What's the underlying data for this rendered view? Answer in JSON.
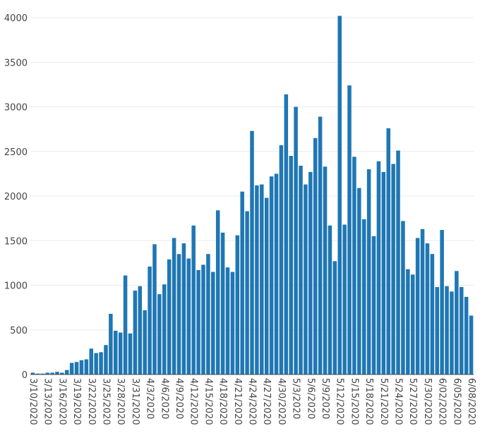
{
  "chart_data": {
    "type": "bar",
    "title": "",
    "xlabel": "",
    "ylabel": "",
    "ylim": [
      0,
      4100
    ],
    "yticks": [
      0,
      500,
      1000,
      1500,
      2000,
      2500,
      3000,
      3500,
      4000
    ],
    "grid": true,
    "bar_color": "#1f77b4",
    "x_tick_labels": [
      "3/10/2020",
      "3/13/2020",
      "3/16/2020",
      "3/19/2020",
      "3/22/2020",
      "3/25/2020",
      "3/28/2020",
      "3/31/2020",
      "4/3/2020",
      "4/6/2020",
      "4/9/2020",
      "4/12/2020",
      "4/15/2020",
      "4/18/2020",
      "4/21/2020",
      "4/24/2020",
      "4/27/2020",
      "4/30/2020",
      "5/3/2020",
      "5/6/2020",
      "5/9/2020",
      "5/12/2020",
      "5/15/2020",
      "5/18/2020",
      "5/21/2020",
      "5/24/2020",
      "5/27/2020",
      "5/30/2020",
      "6/02/2020",
      "6/05/2020",
      "6/08/2020"
    ],
    "categories": [
      "3/10/2020",
      "3/11/2020",
      "3/12/2020",
      "3/13/2020",
      "3/14/2020",
      "3/15/2020",
      "3/16/2020",
      "3/17/2020",
      "3/18/2020",
      "3/19/2020",
      "3/20/2020",
      "3/21/2020",
      "3/22/2020",
      "3/23/2020",
      "3/24/2020",
      "3/25/2020",
      "3/26/2020",
      "3/27/2020",
      "3/28/2020",
      "3/29/2020",
      "3/30/2020",
      "3/31/2020",
      "4/1/2020",
      "4/2/2020",
      "4/3/2020",
      "4/4/2020",
      "4/5/2020",
      "4/6/2020",
      "4/7/2020",
      "4/8/2020",
      "4/9/2020",
      "4/10/2020",
      "4/11/2020",
      "4/12/2020",
      "4/13/2020",
      "4/14/2020",
      "4/15/2020",
      "4/16/2020",
      "4/17/2020",
      "4/18/2020",
      "4/19/2020",
      "4/20/2020",
      "4/21/2020",
      "4/22/2020",
      "4/23/2020",
      "4/24/2020",
      "4/25/2020",
      "4/26/2020",
      "4/27/2020",
      "4/28/2020",
      "4/29/2020",
      "4/30/2020",
      "5/1/2020",
      "5/2/2020",
      "5/3/2020",
      "5/4/2020",
      "5/5/2020",
      "5/6/2020",
      "5/7/2020",
      "5/8/2020",
      "5/9/2020",
      "5/10/2020",
      "5/11/2020",
      "5/12/2020",
      "5/13/2020",
      "5/14/2020",
      "5/15/2020",
      "5/16/2020",
      "5/17/2020",
      "5/18/2020",
      "5/19/2020",
      "5/20/2020",
      "5/21/2020",
      "5/22/2020",
      "5/23/2020",
      "5/24/2020",
      "5/25/2020",
      "5/26/2020",
      "5/27/2020",
      "5/28/2020",
      "5/29/2020",
      "5/30/2020",
      "5/31/2020",
      "6/01/2020",
      "6/02/2020",
      "6/03/2020",
      "6/04/2020",
      "6/05/2020",
      "6/06/2020",
      "6/07/2020",
      "6/08/2020"
    ],
    "values": [
      20,
      10,
      10,
      20,
      20,
      30,
      20,
      50,
      130,
      140,
      160,
      170,
      290,
      240,
      250,
      330,
      680,
      490,
      470,
      1110,
      460,
      940,
      990,
      720,
      1210,
      1460,
      900,
      1010,
      1290,
      1530,
      1350,
      1470,
      1300,
      1670,
      1170,
      1230,
      1350,
      1150,
      1840,
      1590,
      1200,
      1150,
      1560,
      2050,
      1830,
      2730,
      2120,
      2130,
      1980,
      2220,
      2250,
      2570,
      3140,
      2450,
      3000,
      2340,
      2130,
      2270,
      2650,
      2890,
      2330,
      1670,
      1270,
      4020,
      1680,
      3240,
      2440,
      2090,
      1740,
      2300,
      1550,
      2390,
      2270,
      2760,
      2360,
      2510,
      1720,
      1180,
      1120,
      1530,
      1630,
      1470,
      1350,
      980,
      1620,
      990,
      930,
      1160,
      980,
      870,
      660
    ]
  }
}
